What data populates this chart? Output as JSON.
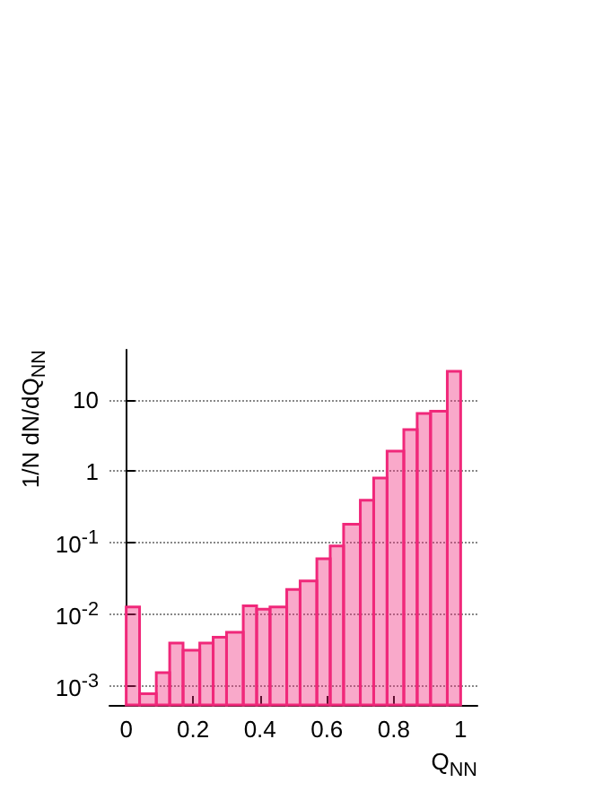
{
  "chart_data": {
    "type": "histogram",
    "xlabel": "Q$_{NN}$",
    "ylabel": "1/N dN/dQ$_{NN}$",
    "bins": [
      0,
      0.04,
      0.09,
      0.13,
      0.17,
      0.22,
      0.26,
      0.3,
      0.35,
      0.39,
      0.43,
      0.48,
      0.52,
      0.57,
      0.61,
      0.65,
      0.7,
      0.74,
      0.78,
      0.83,
      0.87,
      0.91,
      0.96,
      1
    ],
    "values": [
      0.0125,
      0.00076,
      0.0015,
      0.0039,
      0.0031,
      0.0039,
      0.0047,
      0.0055,
      0.013,
      0.0116,
      0.0125,
      0.022,
      0.029,
      0.059,
      0.089,
      0.18,
      0.39,
      0.8,
      1.9,
      3.8,
      6.4,
      6.9,
      25
    ],
    "color": "#f0287a",
    "log": "y",
    "grid": "y",
    "xlim": [
      -0.05,
      1.05
    ],
    "xticks": [
      0,
      0.2,
      0.4,
      0.6,
      0.8,
      1
    ],
    "ylim": [
      0.00053,
      50
    ],
    "yticks": [
      {
        "value": 0.001,
        "label": "10$^{-3}$"
      },
      {
        "value": 0.01,
        "label": "10$^{-2}$"
      },
      {
        "value": 0.1,
        "label": "10$^{-1}$"
      },
      1,
      10
    ]
  }
}
